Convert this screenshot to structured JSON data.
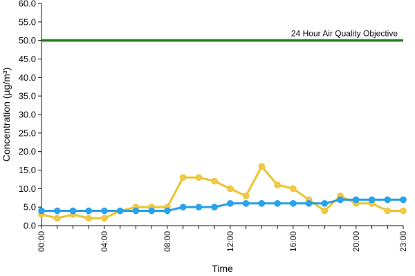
{
  "chart_data": {
    "type": "line",
    "title": "",
    "xlabel": "Time",
    "ylabel": "Concentration (µg/m³)",
    "ylim": [
      0,
      60
    ],
    "y_tick_labels": [
      "0.0",
      "5.0",
      "10.0",
      "15.0",
      "20.0",
      "25.0",
      "30.0",
      "35.0",
      "40.0",
      "45.0",
      "50.0",
      "55.0",
      "60.0"
    ],
    "x_range": [
      0,
      23
    ],
    "x_tick_labels": [
      "00:00",
      "04:00",
      "08:00",
      "12:00",
      "16:00",
      "20:00",
      "23:00"
    ],
    "x_tick_hours": [
      0,
      4,
      8,
      12,
      16,
      20,
      23
    ],
    "grid": false,
    "legend": "none",
    "hours": [
      0,
      1,
      2,
      3,
      4,
      5,
      6,
      7,
      8,
      9,
      10,
      11,
      12,
      13,
      14,
      15,
      16,
      17,
      18,
      19,
      20,
      21,
      22,
      23
    ],
    "series": [
      {
        "color": "#e8c227",
        "marker_fill": "#f2c94c",
        "values": [
          3,
          2,
          3,
          2,
          2,
          4,
          5,
          5,
          5,
          13,
          13,
          12,
          10,
          8,
          16,
          11,
          10,
          7,
          4,
          8,
          6,
          6,
          4,
          4
        ]
      },
      {
        "color": "#1e9be8",
        "marker_fill": "#29a3f0",
        "values": [
          4,
          4,
          4,
          4,
          4,
          4,
          4,
          4,
          4,
          5,
          5,
          5,
          6,
          6,
          6,
          6,
          6,
          6,
          6,
          7,
          7,
          7,
          7,
          7
        ]
      }
    ],
    "reference_line": {
      "value": 50,
      "label": "24 Hour Air Quality Objective",
      "color": "#1a7a1a"
    }
  }
}
